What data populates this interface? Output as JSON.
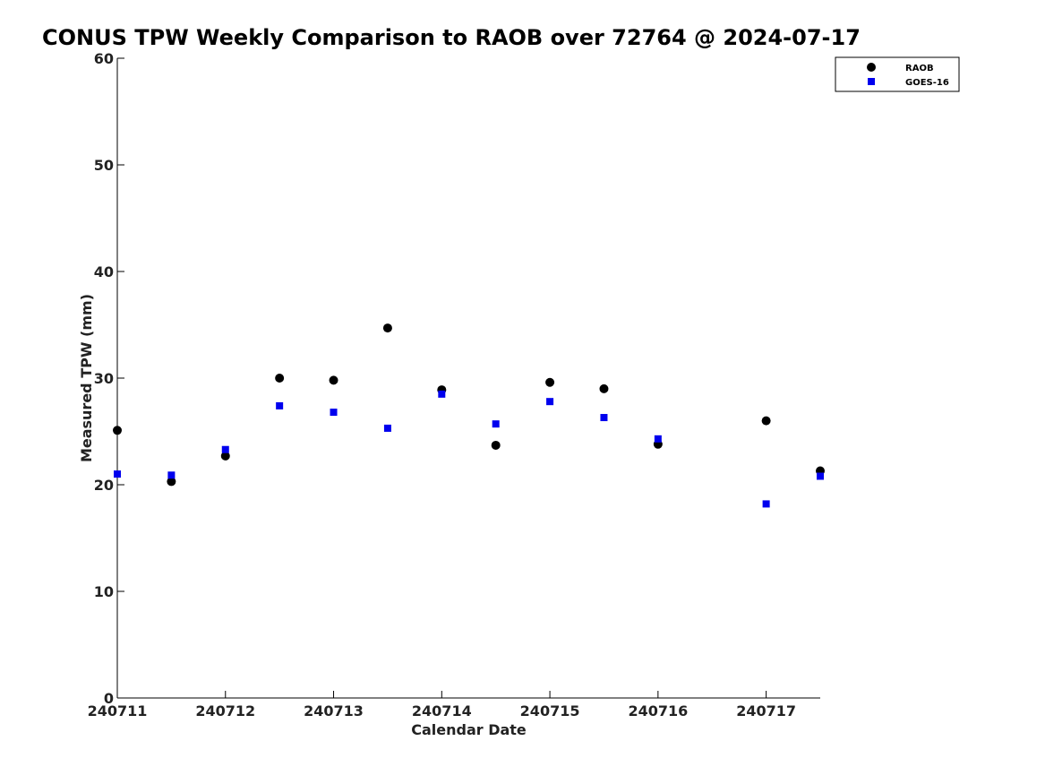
{
  "chart_data": {
    "type": "scatter",
    "title": "CONUS TPW Weekly Comparison to RAOB over 72764 @ 2024-07-17",
    "xlabel": "Calendar Date",
    "ylabel": "Measured TPW (mm)",
    "xlim": [
      240711,
      240717.5
    ],
    "ylim": [
      0,
      60
    ],
    "xticks": [
      240711,
      240712,
      240713,
      240714,
      240715,
      240716,
      240717
    ],
    "xtick_labels": [
      "240711",
      "240712",
      "240713",
      "240714",
      "240715",
      "240716",
      "240717"
    ],
    "yticks": [
      0,
      10,
      20,
      30,
      40,
      50,
      60
    ],
    "ytick_labels": [
      "0",
      "10",
      "20",
      "30",
      "40",
      "50",
      "60"
    ],
    "grid": false,
    "legend_position": "top-right",
    "series": [
      {
        "name": "RAOB",
        "color": "#000000",
        "marker": "circle",
        "x": [
          240711,
          240711.5,
          240712,
          240712.5,
          240713,
          240713.5,
          240714,
          240714.5,
          240715,
          240715.5,
          240716,
          240717,
          240717.5
        ],
        "y": [
          25.1,
          20.3,
          22.7,
          30.0,
          29.8,
          34.7,
          28.9,
          23.7,
          29.6,
          29.0,
          23.8,
          26.0,
          21.3
        ]
      },
      {
        "name": "GOES-16",
        "color": "#0000ee",
        "marker": "square",
        "x": [
          240711,
          240711.5,
          240712,
          240712.5,
          240713,
          240713.5,
          240714,
          240714.5,
          240715,
          240715.5,
          240716,
          240717,
          240717.5
        ],
        "y": [
          21.0,
          20.9,
          23.3,
          27.4,
          26.8,
          25.3,
          28.5,
          25.7,
          27.8,
          26.3,
          24.3,
          18.2,
          20.8
        ]
      }
    ]
  }
}
